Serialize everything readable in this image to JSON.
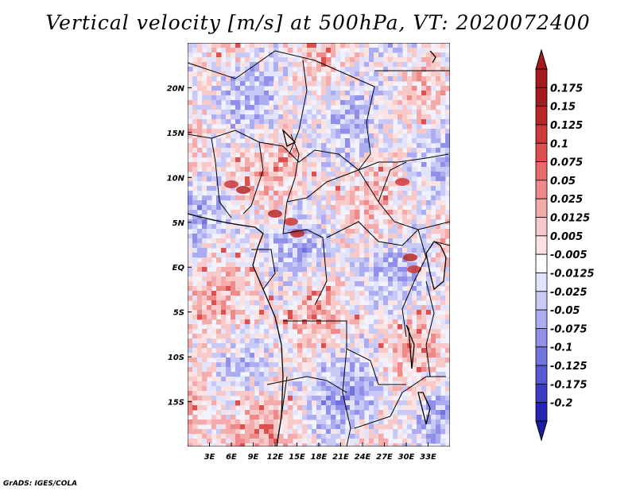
{
  "title": "Vertical velocity [m/s] at 500hPa, VT: 2020072400",
  "credit": "GrADS: IGES/COLA",
  "map": {
    "lon_range": [
      0,
      36
    ],
    "lat_range": [
      -20,
      25
    ],
    "lat_ticks": [
      {
        "value": 20,
        "label": "20N"
      },
      {
        "value": 15,
        "label": "15N"
      },
      {
        "value": 10,
        "label": "10N"
      },
      {
        "value": 5,
        "label": "5N"
      },
      {
        "value": 0,
        "label": "EQ"
      },
      {
        "value": -5,
        "label": "5S"
      },
      {
        "value": -10,
        "label": "10S"
      },
      {
        "value": -15,
        "label": "15S"
      }
    ],
    "lon_ticks": [
      {
        "value": 3,
        "label": "3E"
      },
      {
        "value": 6,
        "label": "6E"
      },
      {
        "value": 9,
        "label": "9E"
      },
      {
        "value": 12,
        "label": "12E"
      },
      {
        "value": 15,
        "label": "15E"
      },
      {
        "value": 18,
        "label": "18E"
      },
      {
        "value": 21,
        "label": "21E"
      },
      {
        "value": 24,
        "label": "24E"
      },
      {
        "value": 27,
        "label": "27E"
      },
      {
        "value": 30,
        "label": "30E"
      },
      {
        "value": 33,
        "label": "33E"
      }
    ]
  },
  "colorbar": {
    "levels": [
      {
        "label": "0.175",
        "color": "#a51a1a"
      },
      {
        "label": "0.15",
        "color": "#b82828"
      },
      {
        "label": "0.125",
        "color": "#cc3a3a"
      },
      {
        "label": "0.1",
        "color": "#dc5050"
      },
      {
        "label": "0.075",
        "color": "#e66b6b"
      },
      {
        "label": "0.05",
        "color": "#ee8a8a"
      },
      {
        "label": "0.025",
        "color": "#f4abab"
      },
      {
        "label": "0.0125",
        "color": "#f8c9c9"
      },
      {
        "label": "0.005",
        "color": "#fbe3e3"
      },
      {
        "label": "-0.005",
        "color": "#ffffff"
      },
      {
        "label": "-0.0125",
        "color": "#e3e3fb"
      },
      {
        "label": "-0.025",
        "color": "#c9c9f6"
      },
      {
        "label": "-0.05",
        "color": "#acacf0"
      },
      {
        "label": "-0.075",
        "color": "#9090e8"
      },
      {
        "label": "-0.1",
        "color": "#7373de"
      },
      {
        "label": "-0.125",
        "color": "#5858d2"
      },
      {
        "label": "-0.175",
        "color": "#3c3cc4"
      },
      {
        "label": "-0.2",
        "color": "#2626b0"
      }
    ],
    "max_color": "#a51a1a",
    "min_color": "#1e1ea0"
  },
  "palette": {
    "positive": [
      "#fbe3e3",
      "#f8c9c9",
      "#f4abab",
      "#ee8a8a",
      "#dc5050",
      "#b82828"
    ],
    "negative": [
      "#e3e3fb",
      "#c9c9f6",
      "#acacf0",
      "#9090e8",
      "#7373de",
      "#5858d2"
    ]
  }
}
